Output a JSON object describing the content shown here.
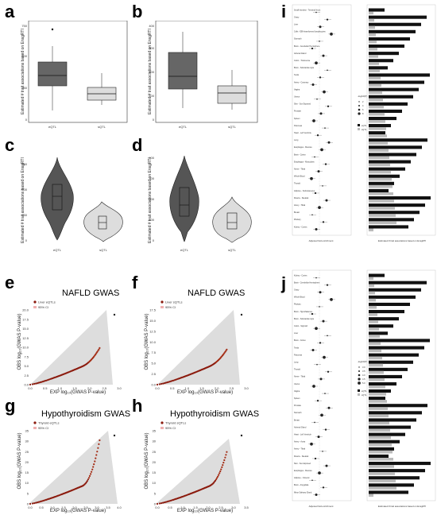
{
  "panel_labels": {
    "a": "a",
    "b": "b",
    "c": "c",
    "d": "d",
    "e": "e",
    "f": "f",
    "g": "g",
    "h": "h",
    "i": "i",
    "j": "j"
  },
  "box_violin": {
    "ylabel": "Estimated # trait associations based on EnsgRTI",
    "categories": [
      "eQTL",
      "sQTL"
    ],
    "y_ticks_ac": [
      "0",
      "250",
      "500",
      "750"
    ],
    "y_ticks_bd": [
      "0",
      "100",
      "200",
      "300",
      "400"
    ]
  },
  "qq": {
    "ylabel": "OBS log₁₀(GWAS P-value)",
    "xlabel": "EXP log₁₀(GWAS P-value)",
    "ci_label": "95% CI",
    "e": {
      "title": "NAFLD GWAS",
      "legend": "Liver eQTLs",
      "x_ticks": [
        "0.0",
        "0.5",
        "1.0",
        "1.5",
        "2.0",
        "2.5",
        "3.0"
      ],
      "y_ticks": [
        "0.0",
        "2.5",
        "5.0",
        "7.5",
        "10.0",
        "12.5",
        "15.0",
        "17.5",
        "20.0"
      ]
    },
    "f": {
      "title": "NAFLD GWAS",
      "legend": "Liver sQTLs",
      "x_ticks": [
        "0.0",
        "0.5",
        "1.0",
        "1.5",
        "2.0",
        "2.5",
        "3.0"
      ],
      "y_ticks": [
        "0.0",
        "2.5",
        "5.0",
        "7.5",
        "10.0",
        "12.5",
        "15.0",
        "17.5"
      ]
    },
    "g": {
      "title": "Hypothyroidism  GWAS",
      "legend": "Thyroid eQTLs",
      "x_ticks": [
        "0.0",
        "0.5",
        "1.0",
        "1.5",
        "2.0",
        "2.5",
        "3.0",
        "3.5",
        "4.0"
      ],
      "y_ticks": [
        "0",
        "5",
        "10",
        "15",
        "20",
        "25",
        "30",
        "35"
      ]
    },
    "h": {
      "title": "Hypothyroidism  GWAS",
      "legend": "Thyroid sQTLs",
      "x_ticks": [
        "0.0",
        "0.5",
        "1.0",
        "1.5",
        "2.0",
        "2.5",
        "3.0",
        "3.5"
      ],
      "y_ticks": [
        "0",
        "5",
        "10",
        "15",
        "20",
        "25",
        "30",
        "35"
      ]
    }
  },
  "forest": {
    "xlabel_left": "Adjusted fold enrichment",
    "xlabel_right": "Estimated # trait associations based on EnsgRTI",
    "legend_title": "-log10(P)",
    "i_tissues": [
      "Small Intestine - Terminal Ileum",
      "Ovary",
      "Liver",
      "Cells - EBV-transformed lymphocytes",
      "Stomach",
      "Brain - Cerebellar Hemisphere",
      "Adrenal Gland",
      "Colon - Transverse",
      "Brain - Substantia nigra",
      "Testis",
      "Artery - Coronary",
      "Vagina",
      "Uterus",
      "Skin - Sun Exposed",
      "Prostate",
      "Spleen",
      "Pancreas",
      "Heart - Left Ventricle",
      "Lung",
      "Esophagus - Mucosa",
      "Brain - Cortex",
      "Esophagus - Muscularis",
      "Nerve - Tibial",
      "Whole Blood",
      "Thyroid",
      "Adipose - Subcutaneous",
      "Muscle - Skeletal",
      "Artery - Tibial",
      "Breast",
      "Pituitary",
      "Kidney - Cortex"
    ],
    "j_tissues": [
      "Kidney - Cortex",
      "Brain - Cerebellar Hemisphere",
      "Ovary",
      "Whole Blood",
      "Pituitary",
      "Brain - Hypothalamus",
      "Brain - Substantia nigra",
      "Colon - Sigmoid",
      "Liver",
      "Brain - Cortex",
      "Testis",
      "Pancreas",
      "Lung",
      "Thyroid",
      "Nerve - Tibial",
      "Uterus",
      "Vagina",
      "Spleen",
      "Prostate",
      "Stomach",
      "Breast",
      "Adrenal Gland",
      "Heart - Left Ventricle",
      "Artery - Aorta",
      "Artery - Tibial",
      "Muscle - Skeletal",
      "Skin - Sun Exposed",
      "Esophagus - Mucosa",
      "Adipose - Visceral",
      "Brain - Amygdala",
      "Minor Salivary Gland"
    ],
    "legend_sizes_i": [
      "2",
      "4",
      "6",
      "8"
    ],
    "legend_sizes_j": [
      "3.0",
      "3.5",
      "4.0",
      "4.5",
      "5.0"
    ],
    "series_legend": [
      "eQTL",
      "sQTL"
    ]
  },
  "chart_data": [
    {
      "type": "box",
      "panel": "a",
      "categories": [
        "eQTL",
        "sQTL"
      ],
      "ylim": [
        0,
        750
      ],
      "stats": [
        {
          "min": 20,
          "q1": 240,
          "median": 320,
          "q3": 430,
          "max": 580,
          "outlier": 710
        },
        {
          "min": 40,
          "q1": 100,
          "median": 150,
          "q3": 200,
          "max": 330
        }
      ]
    },
    {
      "type": "box",
      "panel": "b",
      "categories": [
        "eQTL",
        "sQTL"
      ],
      "ylim": [
        0,
        420
      ],
      "stats": [
        {
          "min": 10,
          "q1": 160,
          "median": 220,
          "q3": 320,
          "max": 390
        },
        {
          "min": 30,
          "q1": 70,
          "median": 100,
          "q3": 140,
          "max": 240
        }
      ]
    },
    {
      "type": "violin",
      "panel": "c",
      "categories": [
        "eQTL",
        "sQTL"
      ],
      "ylim": [
        0,
        750
      ]
    },
    {
      "type": "violin",
      "panel": "d",
      "categories": [
        "eQTL",
        "sQTL"
      ],
      "ylim": [
        0,
        420
      ]
    },
    {
      "type": "scatter",
      "panel": "e",
      "xlim": [
        0,
        3
      ],
      "ylim": [
        0,
        20
      ]
    },
    {
      "type": "scatter",
      "panel": "f",
      "xlim": [
        0,
        3
      ],
      "ylim": [
        0,
        18
      ]
    },
    {
      "type": "scatter",
      "panel": "g",
      "xlim": [
        0,
        4
      ],
      "ylim": [
        0,
        37
      ]
    },
    {
      "type": "scatter",
      "panel": "h",
      "xlim": [
        0,
        3.6
      ],
      "ylim": [
        0,
        37
      ]
    }
  ]
}
